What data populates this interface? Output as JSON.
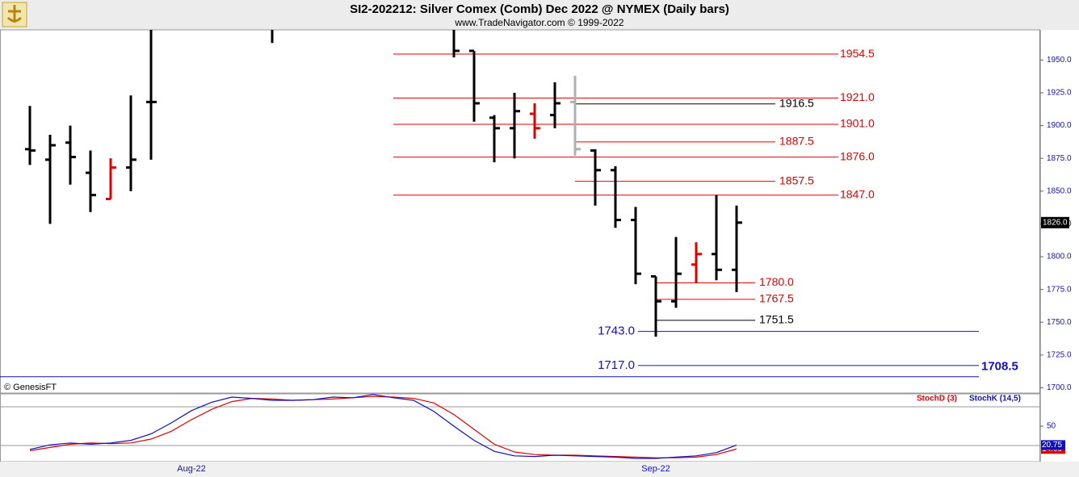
{
  "chart_data": [
    {
      "type": "ohlc",
      "title": "SI2-202212:  Silver Comex (Comb) Dec 2022 @ NYMEX  (Daily bars)",
      "subtitle": "www.TradeNavigator.com © 1999-2022",
      "source": "© GenesisFT",
      "categories": [
        null,
        null,
        null,
        null,
        null,
        null,
        null,
        null,
        "Aug-22",
        null,
        null,
        null,
        null,
        null,
        null,
        null,
        null,
        null,
        null,
        null,
        null,
        null,
        null,
        null,
        null,
        null,
        null,
        null,
        null,
        null,
        null,
        "Sep-22",
        null,
        null,
        null,
        null
      ],
      "open": [
        1882,
        1874,
        1887,
        1864,
        1844,
        1868,
        1918,
        null,
        null,
        null,
        null,
        null,
        null,
        null,
        null,
        null,
        null,
        null,
        null,
        null,
        null,
        null,
        1957,
        1906,
        1898,
        1909,
        1908,
        1918,
        1881,
        1866,
        1828,
        1785,
        1766,
        1794,
        1802,
        1790
      ],
      "high": [
        1915,
        1893,
        1900,
        1881,
        1875,
        1923,
        1990,
        null,
        null,
        null,
        null,
        null,
        1990,
        null,
        null,
        null,
        null,
        null,
        null,
        null,
        null,
        1990,
        1957,
        1908,
        1925,
        1917,
        1933,
        1938,
        1882,
        1869,
        1838,
        1785,
        1815,
        1811,
        1847,
        1839
      ],
      "low": [
        1870,
        1825,
        1855,
        1834,
        1844,
        1850,
        1874,
        null,
        null,
        null,
        null,
        null,
        1963,
        null,
        null,
        null,
        null,
        null,
        null,
        null,
        null,
        1952,
        1903,
        1872,
        1875,
        1890,
        1898,
        1877,
        1839,
        1822,
        1779,
        1739,
        1761,
        1780,
        1782,
        1773
      ],
      "close": [
        1881,
        1885,
        1876,
        1847,
        1868,
        1874,
        1918,
        null,
        null,
        null,
        null,
        null,
        null,
        null,
        null,
        null,
        null,
        null,
        null,
        null,
        null,
        1957,
        1917,
        1898,
        1911,
        1898,
        1917,
        1882,
        1866,
        1828,
        1787,
        1766,
        1787,
        1802,
        1790,
        1826
      ],
      "colors": [
        "#000000",
        "#000000",
        "#000000",
        "#000000",
        "#e00000",
        "#000000",
        "#000000",
        null,
        null,
        null,
        null,
        null,
        "#000000",
        null,
        null,
        null,
        null,
        null,
        null,
        null,
        null,
        "#000000",
        "#000000",
        "#000000",
        "#000000",
        "#e00000",
        "#000000",
        "#b0b0b0",
        "#000000",
        "#000000",
        "#000000",
        "#000000",
        "#000000",
        "#e00000",
        "#000000",
        "#000000"
      ],
      "levels": {
        "values": [
          1954.5,
          1921,
          1916.5,
          1901,
          1887.5,
          1876,
          1857.5,
          1847,
          1780,
          1767.5,
          1751.5,
          1743,
          1717,
          1708.5
        ],
        "value_labels": [
          "1954.5",
          "1921.0",
          "1916.5",
          "1901.0",
          "1887.5",
          "1876.0",
          "1857.5",
          "1847.0",
          "1780.0",
          "1767.5",
          "1751.5",
          "1743.0",
          "1717.0",
          "1708.5"
        ],
        "colors": [
          "#e00000",
          "#e00000",
          "#000000",
          "#e00000",
          "#e00000",
          "#e00000",
          "#e00000",
          "#e00000",
          "#e00000",
          "#e00000",
          "#000000",
          "#1010c0",
          "#1010c0",
          "#1010c0"
        ]
      },
      "last_price": {
        "value": 1826,
        "label": "1826.0"
      },
      "ylim": [
        1696,
        1973
      ],
      "yticks": [
        {
          "value": 1700,
          "label": "1700.0"
        },
        {
          "value": 1725,
          "label": "1725.0"
        },
        {
          "value": 1750,
          "label": "1750.0"
        },
        {
          "value": 1775,
          "label": "1775.0"
        },
        {
          "value": 1800,
          "label": "1800.0"
        },
        {
          "value": 1825,
          "label": "1825.0"
        },
        {
          "value": 1850,
          "label": "1850.0"
        },
        {
          "value": 1875,
          "label": "1875.0"
        },
        {
          "value": 1900,
          "label": "1900.0"
        },
        {
          "value": 1925,
          "label": "1925.0"
        },
        {
          "value": 1950,
          "label": "1950.0"
        }
      ],
      "ytick_color": "#1010c0"
    },
    {
      "type": "line",
      "series": [
        {
          "name": "StochD (3)",
          "color": "#e00000",
          "values": [
            12,
            17,
            22,
            24,
            23,
            24,
            30,
            42,
            60,
            76,
            88,
            93,
            92,
            90,
            91,
            92,
            94,
            96,
            95,
            93,
            86,
            68,
            45,
            22,
            10,
            6,
            5,
            5,
            4,
            3,
            2,
            1,
            1,
            2,
            6,
            14.69
          ]
        },
        {
          "name": "StochK (14,5)",
          "color": "#1010c0",
          "values": [
            14,
            21,
            24,
            22,
            24,
            28,
            38,
            55,
            74,
            87,
            95,
            93,
            90,
            90,
            91,
            95,
            94,
            99,
            94,
            90,
            73,
            50,
            28,
            11,
            4,
            3,
            5,
            4,
            3,
            2,
            0,
            0,
            2,
            4,
            9,
            20.75
          ]
        }
      ],
      "ylim": [
        0,
        100
      ],
      "yticks": [
        50
      ],
      "guides": [
        20,
        80
      ]
    }
  ]
}
